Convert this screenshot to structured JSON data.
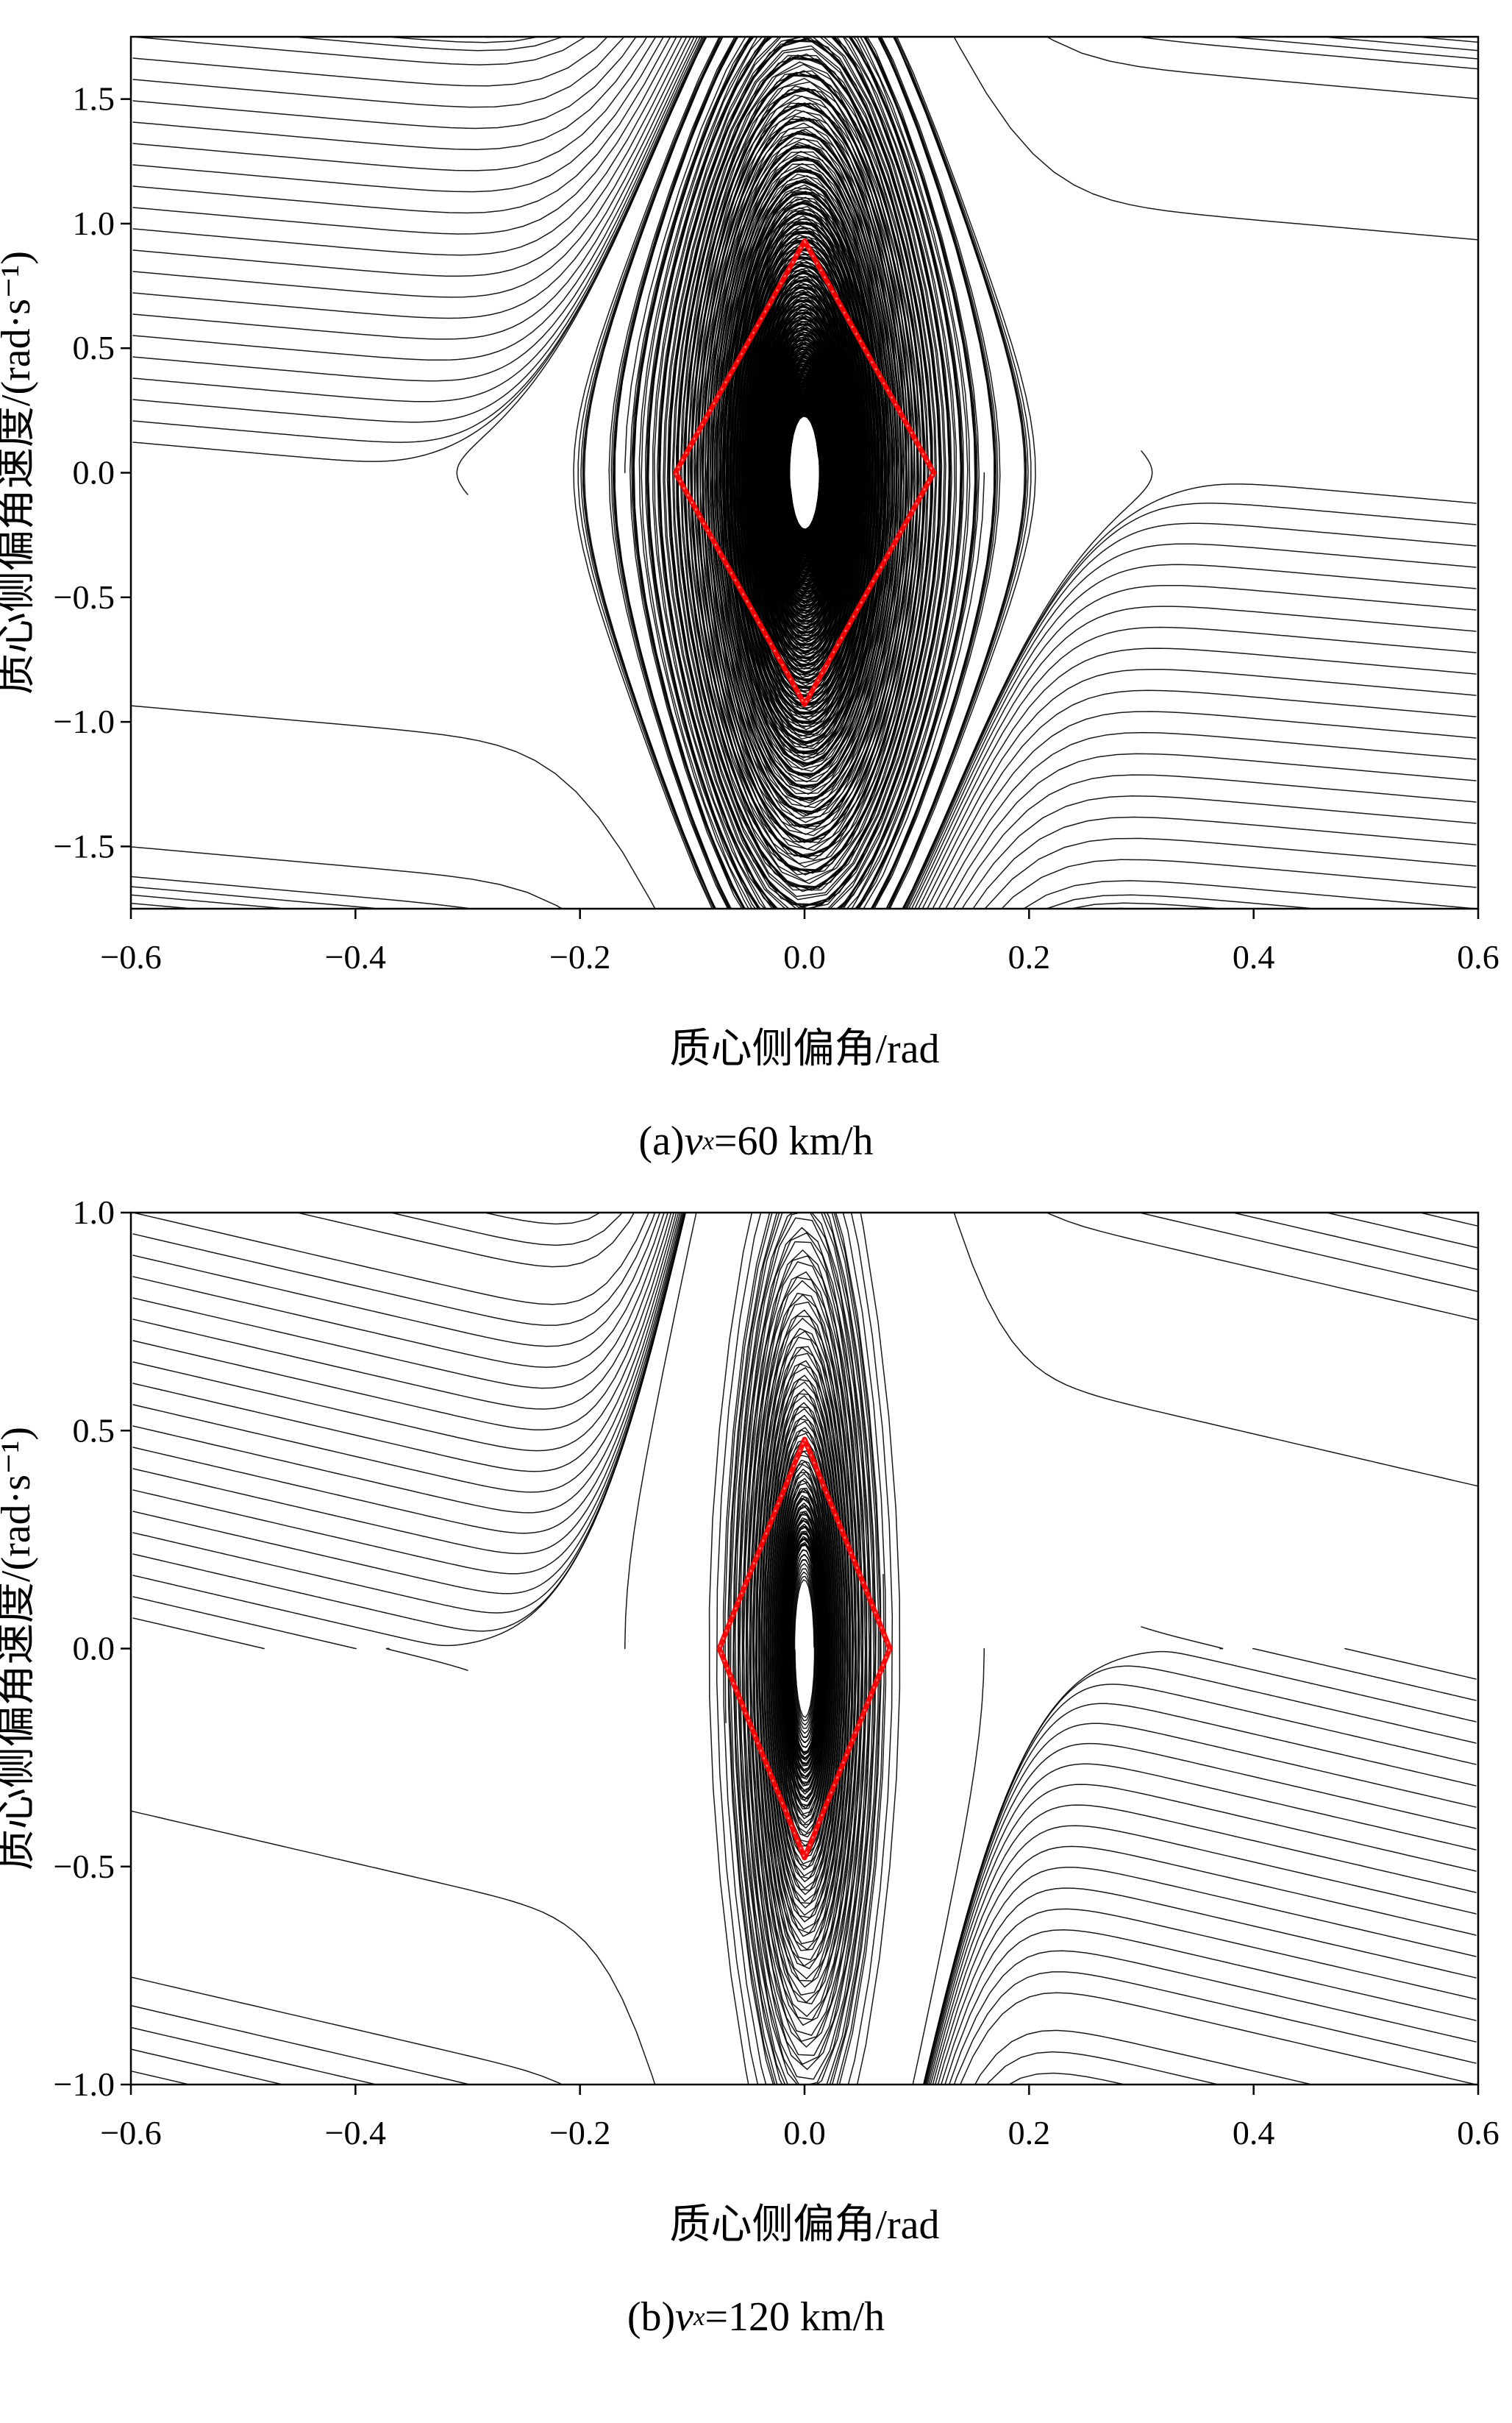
{
  "figure": {
    "description": "Two vehicle sideslip phase-plane portraits with red diamond stability boundaries"
  },
  "chart_data": [
    {
      "type": "phase-portrait",
      "title": "(a) vx=60 km/h",
      "caption_parts": {
        "prefix": "(a) ",
        "variable": "v",
        "subscript": "x",
        "suffix": "=60 km/h"
      },
      "xlabel": "质心侧偏角/rad",
      "ylabel": "质心侧偏角速度/(rad·s⁻¹)",
      "xlim": [
        -0.6,
        0.6
      ],
      "ylim": [
        -1.75,
        1.75
      ],
      "xticks": [
        -0.6,
        -0.4,
        -0.2,
        0.0,
        0.2,
        0.4,
        0.6
      ],
      "xtick_labels": [
        "−0.6",
        "−0.4",
        "−0.2",
        "0.0",
        "0.2",
        "0.4",
        "0.6"
      ],
      "yticks": [
        1.5,
        1.0,
        0.5,
        0.0,
        -0.5,
        -1.0,
        -1.5
      ],
      "ytick_labels": [
        "1.5",
        "1.0",
        "0.5",
        "0.0",
        "−0.5",
        "−1.0",
        "−1.5"
      ],
      "grid": false,
      "trajectory_color": "#000000",
      "stability_boundary": {
        "shape": "diamond",
        "color": "#ff0000",
        "accent_color": "#ff6a6a",
        "vertices": [
          [
            0,
            0.93
          ],
          [
            0.115,
            0
          ],
          [
            0,
            -0.93
          ],
          [
            -0.115,
            0
          ]
        ]
      },
      "flow_model": {
        "stiffness": 300,
        "force_width": 0.13,
        "damping": 0.4
      },
      "seed_config": {
        "edge_count": 20,
        "top_count": 13
      }
    },
    {
      "type": "phase-portrait",
      "title": "(b) vx=120 km/h",
      "caption_parts": {
        "prefix": "(b) ",
        "variable": "v",
        "subscript": "x",
        "suffix": "=120 km/h"
      },
      "xlabel": "质心侧偏角/rad",
      "ylabel": "质心侧偏角速度/(rad·s⁻¹)",
      "xlim": [
        -0.6,
        0.6
      ],
      "ylim": [
        -1.0,
        1.0
      ],
      "xticks": [
        -0.6,
        -0.4,
        -0.2,
        0.0,
        0.2,
        0.4,
        0.6
      ],
      "xtick_labels": [
        "−0.6",
        "−0.4",
        "−0.2",
        "0.0",
        "0.2",
        "0.4",
        "0.6"
      ],
      "yticks": [
        1.0,
        0.5,
        0.0,
        -0.5,
        -1.0
      ],
      "ytick_labels": [
        "1.0",
        "0.5",
        "0.0",
        "−0.5",
        "−1.0"
      ],
      "grid": false,
      "trajectory_color": "#000000",
      "stability_boundary": {
        "shape": "diamond",
        "color": "#ff0000",
        "accent_color": "#ff6a6a",
        "vertices": [
          [
            0,
            0.48
          ],
          [
            0.076,
            0
          ],
          [
            0,
            -0.48
          ],
          [
            -0.076,
            0
          ]
        ]
      },
      "flow_model": {
        "stiffness": 330,
        "force_width": 0.1,
        "damping": 0.6
      },
      "seed_config": {
        "edge_count": 20,
        "top_count": 13
      }
    }
  ]
}
